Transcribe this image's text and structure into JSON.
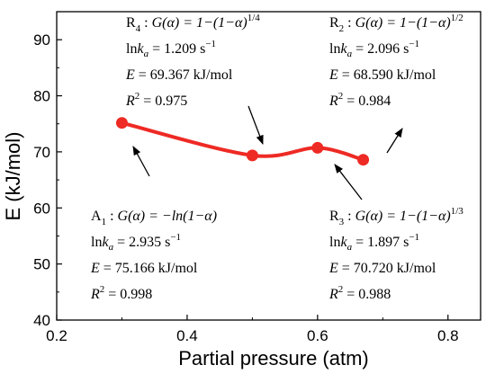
{
  "chart_data": {
    "type": "line",
    "xlabel": "Partial pressure (atm)",
    "ylabel": "E (kJ/mol)",
    "xlim": [
      0.2,
      0.85
    ],
    "ylim": [
      40,
      95
    ],
    "x_ticks": [
      "0.2",
      "0.4",
      "0.6",
      "0.8"
    ],
    "y_ticks": [
      "40",
      "50",
      "60",
      "70",
      "80",
      "90"
    ],
    "x_tick_values": [
      0.2,
      0.4,
      0.6,
      0.8
    ],
    "y_tick_values": [
      40,
      50,
      60,
      70,
      80,
      90
    ],
    "grid": false,
    "line_color": "#ee2a24",
    "series": [
      {
        "x": [
          0.3,
          0.5,
          0.6,
          0.67
        ],
        "values": [
          75.166,
          69.367,
          70.72,
          68.59
        ]
      }
    ],
    "annotations": [
      {
        "id": "A1",
        "model_prefix": "A",
        "model_index": "1",
        "g_label": "G(α) = −ln(1−α)",
        "g_exp": "",
        "lnk_value": "2.935 s",
        "lnk_exp": "−1",
        "e_value": "75.166 kJ/mol",
        "r2_value": "0.998"
      },
      {
        "id": "R4",
        "model_prefix": "R",
        "model_index": "4",
        "g_label": "G(α) = 1−(1−α)",
        "g_exp": "1/4",
        "lnk_value": "1.209 s",
        "lnk_exp": "−1",
        "e_value": "69.367 kJ/mol",
        "r2_value": "0.975"
      },
      {
        "id": "R3",
        "model_prefix": "R",
        "model_index": "3",
        "g_label": "G(α) = 1−(1−α)",
        "g_exp": "1/3",
        "lnk_value": "1.897 s",
        "lnk_exp": "−1",
        "e_value": "70.720 kJ/mol",
        "r2_value": "0.988"
      },
      {
        "id": "R2",
        "model_prefix": "R",
        "model_index": "2",
        "g_label": "G(α) = 1−(1−α)",
        "g_exp": "1/2",
        "lnk_value": "2.096 s",
        "lnk_exp": "−1",
        "e_value": "68.590 kJ/mol",
        "r2_value": "0.984"
      }
    ]
  }
}
